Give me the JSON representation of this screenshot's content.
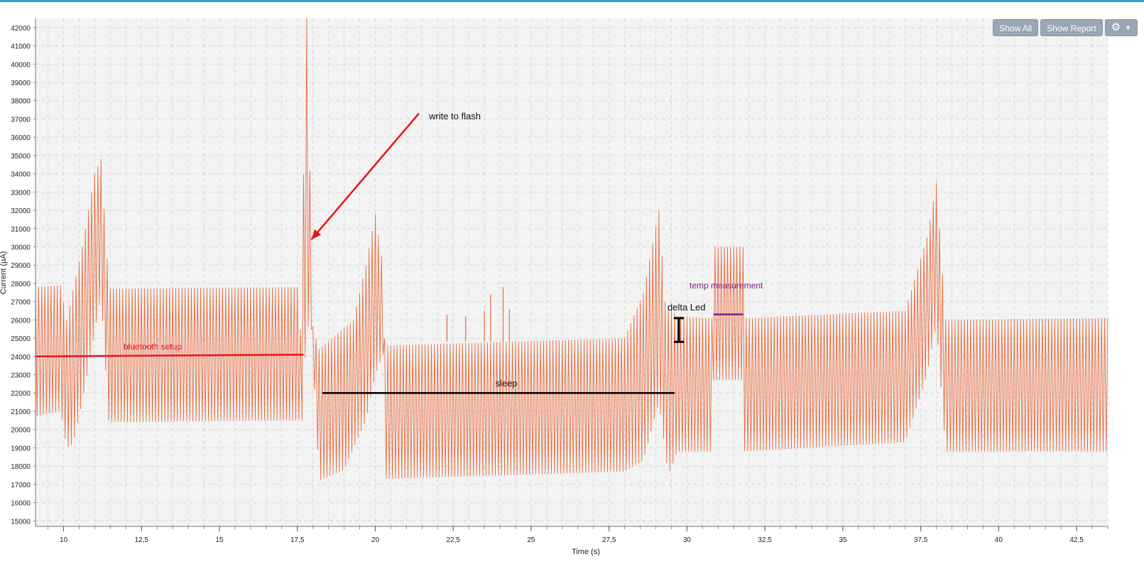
{
  "toolbar": {
    "show_all": "Show All",
    "show_report": "Show Report",
    "settings_icon": "gear-icon",
    "dropdown_icon": "caret-down-icon"
  },
  "colors": {
    "trace": "#e8541d",
    "plot_bg": "#f3f3f3",
    "grid": "#d8d8d8",
    "bluetooth_line": "#e8141c",
    "arrow": "#e8141c",
    "sleep_line": "#000000",
    "temp_line": "#7b1f82",
    "accent_bar": "#2ea3d6",
    "button": "#9aa6b4"
  },
  "chart_data": {
    "type": "line",
    "xlabel": "Time (s)",
    "ylabel": "Current (µA)",
    "xlim": [
      9.1,
      43.5
    ],
    "ylim": [
      14700,
      42500
    ],
    "xticks": [
      "10",
      "12,5",
      "15",
      "17,5",
      "20",
      "22,5",
      "25",
      "27,5",
      "30",
      "32,5",
      "35",
      "37,5",
      "40",
      "42,5"
    ],
    "xtick_values": [
      10,
      12.5,
      15,
      17.5,
      20,
      22.5,
      25,
      27.5,
      30,
      32.5,
      35,
      37.5,
      40,
      42.5
    ],
    "yticks": [
      15000,
      16000,
      17000,
      18000,
      19000,
      20000,
      21000,
      22000,
      23000,
      24000,
      25000,
      26000,
      27000,
      28000,
      29000,
      30000,
      31000,
      32000,
      33000,
      34000,
      35000,
      36000,
      37000,
      38000,
      39000,
      40000,
      41000,
      42000
    ],
    "grid": true,
    "series": [
      {
        "envelope_upper": [
          [
            9.1,
            27800
          ],
          [
            9.9,
            27900
          ],
          [
            10.1,
            26000
          ],
          [
            10.6,
            30000
          ],
          [
            11.0,
            34000
          ],
          [
            11.2,
            34800
          ],
          [
            11.45,
            28000
          ],
          [
            11.5,
            27700
          ],
          [
            17.55,
            27800
          ],
          [
            17.6,
            25500
          ],
          [
            17.8,
            42500
          ],
          [
            17.95,
            30000
          ],
          [
            18.0,
            25600
          ],
          [
            18.2,
            24400
          ],
          [
            19.3,
            26000
          ],
          [
            19.7,
            29000
          ],
          [
            20.0,
            31800
          ],
          [
            20.2,
            29500
          ],
          [
            20.3,
            25000
          ],
          [
            20.35,
            24600
          ],
          [
            28.0,
            25000
          ],
          [
            28.6,
            27500
          ],
          [
            29.1,
            32000
          ],
          [
            29.3,
            27000
          ],
          [
            29.7,
            26200
          ],
          [
            30.8,
            26100
          ],
          [
            30.85,
            30000
          ],
          [
            31.8,
            30000
          ],
          [
            31.85,
            26100
          ],
          [
            37.0,
            26500
          ],
          [
            37.7,
            30500
          ],
          [
            38.0,
            33500
          ],
          [
            38.3,
            26000
          ],
          [
            43.5,
            26100
          ]
        ],
        "envelope_lower": [
          [
            9.1,
            20700
          ],
          [
            9.9,
            21000
          ],
          [
            10.1,
            19000
          ],
          [
            10.3,
            19200
          ],
          [
            10.6,
            21500
          ],
          [
            11.2,
            27300
          ],
          [
            11.45,
            20500
          ],
          [
            11.5,
            20400
          ],
          [
            17.55,
            20500
          ],
          [
            17.6,
            18700
          ],
          [
            17.8,
            25700
          ],
          [
            17.95,
            25500
          ],
          [
            18.2,
            17200
          ],
          [
            19.0,
            17800
          ],
          [
            19.7,
            20500
          ],
          [
            20.0,
            23000
          ],
          [
            20.3,
            24300
          ],
          [
            20.35,
            17300
          ],
          [
            28.0,
            17700
          ],
          [
            28.6,
            18300
          ],
          [
            29.1,
            21500
          ],
          [
            29.4,
            17500
          ],
          [
            29.7,
            18800
          ],
          [
            30.8,
            18800
          ],
          [
            30.85,
            22700
          ],
          [
            31.8,
            22700
          ],
          [
            31.85,
            18800
          ],
          [
            37.0,
            19300
          ],
          [
            37.7,
            23000
          ],
          [
            38.0,
            25800
          ],
          [
            38.3,
            18800
          ],
          [
            43.5,
            18800
          ]
        ],
        "spikes": [
          [
            22.3,
            26300
          ],
          [
            22.9,
            26200
          ],
          [
            23.5,
            26500
          ],
          [
            23.7,
            27400
          ],
          [
            24.1,
            27800
          ],
          [
            24.3,
            26600
          ]
        ]
      }
    ],
    "annotations": [
      {
        "label": "bluetooth setup",
        "x1": 9.1,
        "y1": 24000,
        "x2": 17.7,
        "y2": 24100,
        "kind": "line"
      },
      {
        "label": "write to flash",
        "x_from": 21.4,
        "y_from": 37300,
        "x_to": 17.95,
        "y_to": 30400,
        "kind": "arrow"
      },
      {
        "label": "sleep",
        "x1": 18.3,
        "y1": 22000,
        "x2": 29.6,
        "y2": 22000,
        "kind": "line"
      },
      {
        "label": "delta Led",
        "x": 29.6,
        "y1": 26100,
        "y2": 24800,
        "kind": "bracket"
      },
      {
        "label": "temp measurement",
        "x1": 30.85,
        "y1": 26300,
        "x2": 31.8,
        "y2": 26300,
        "kind": "line"
      }
    ]
  }
}
